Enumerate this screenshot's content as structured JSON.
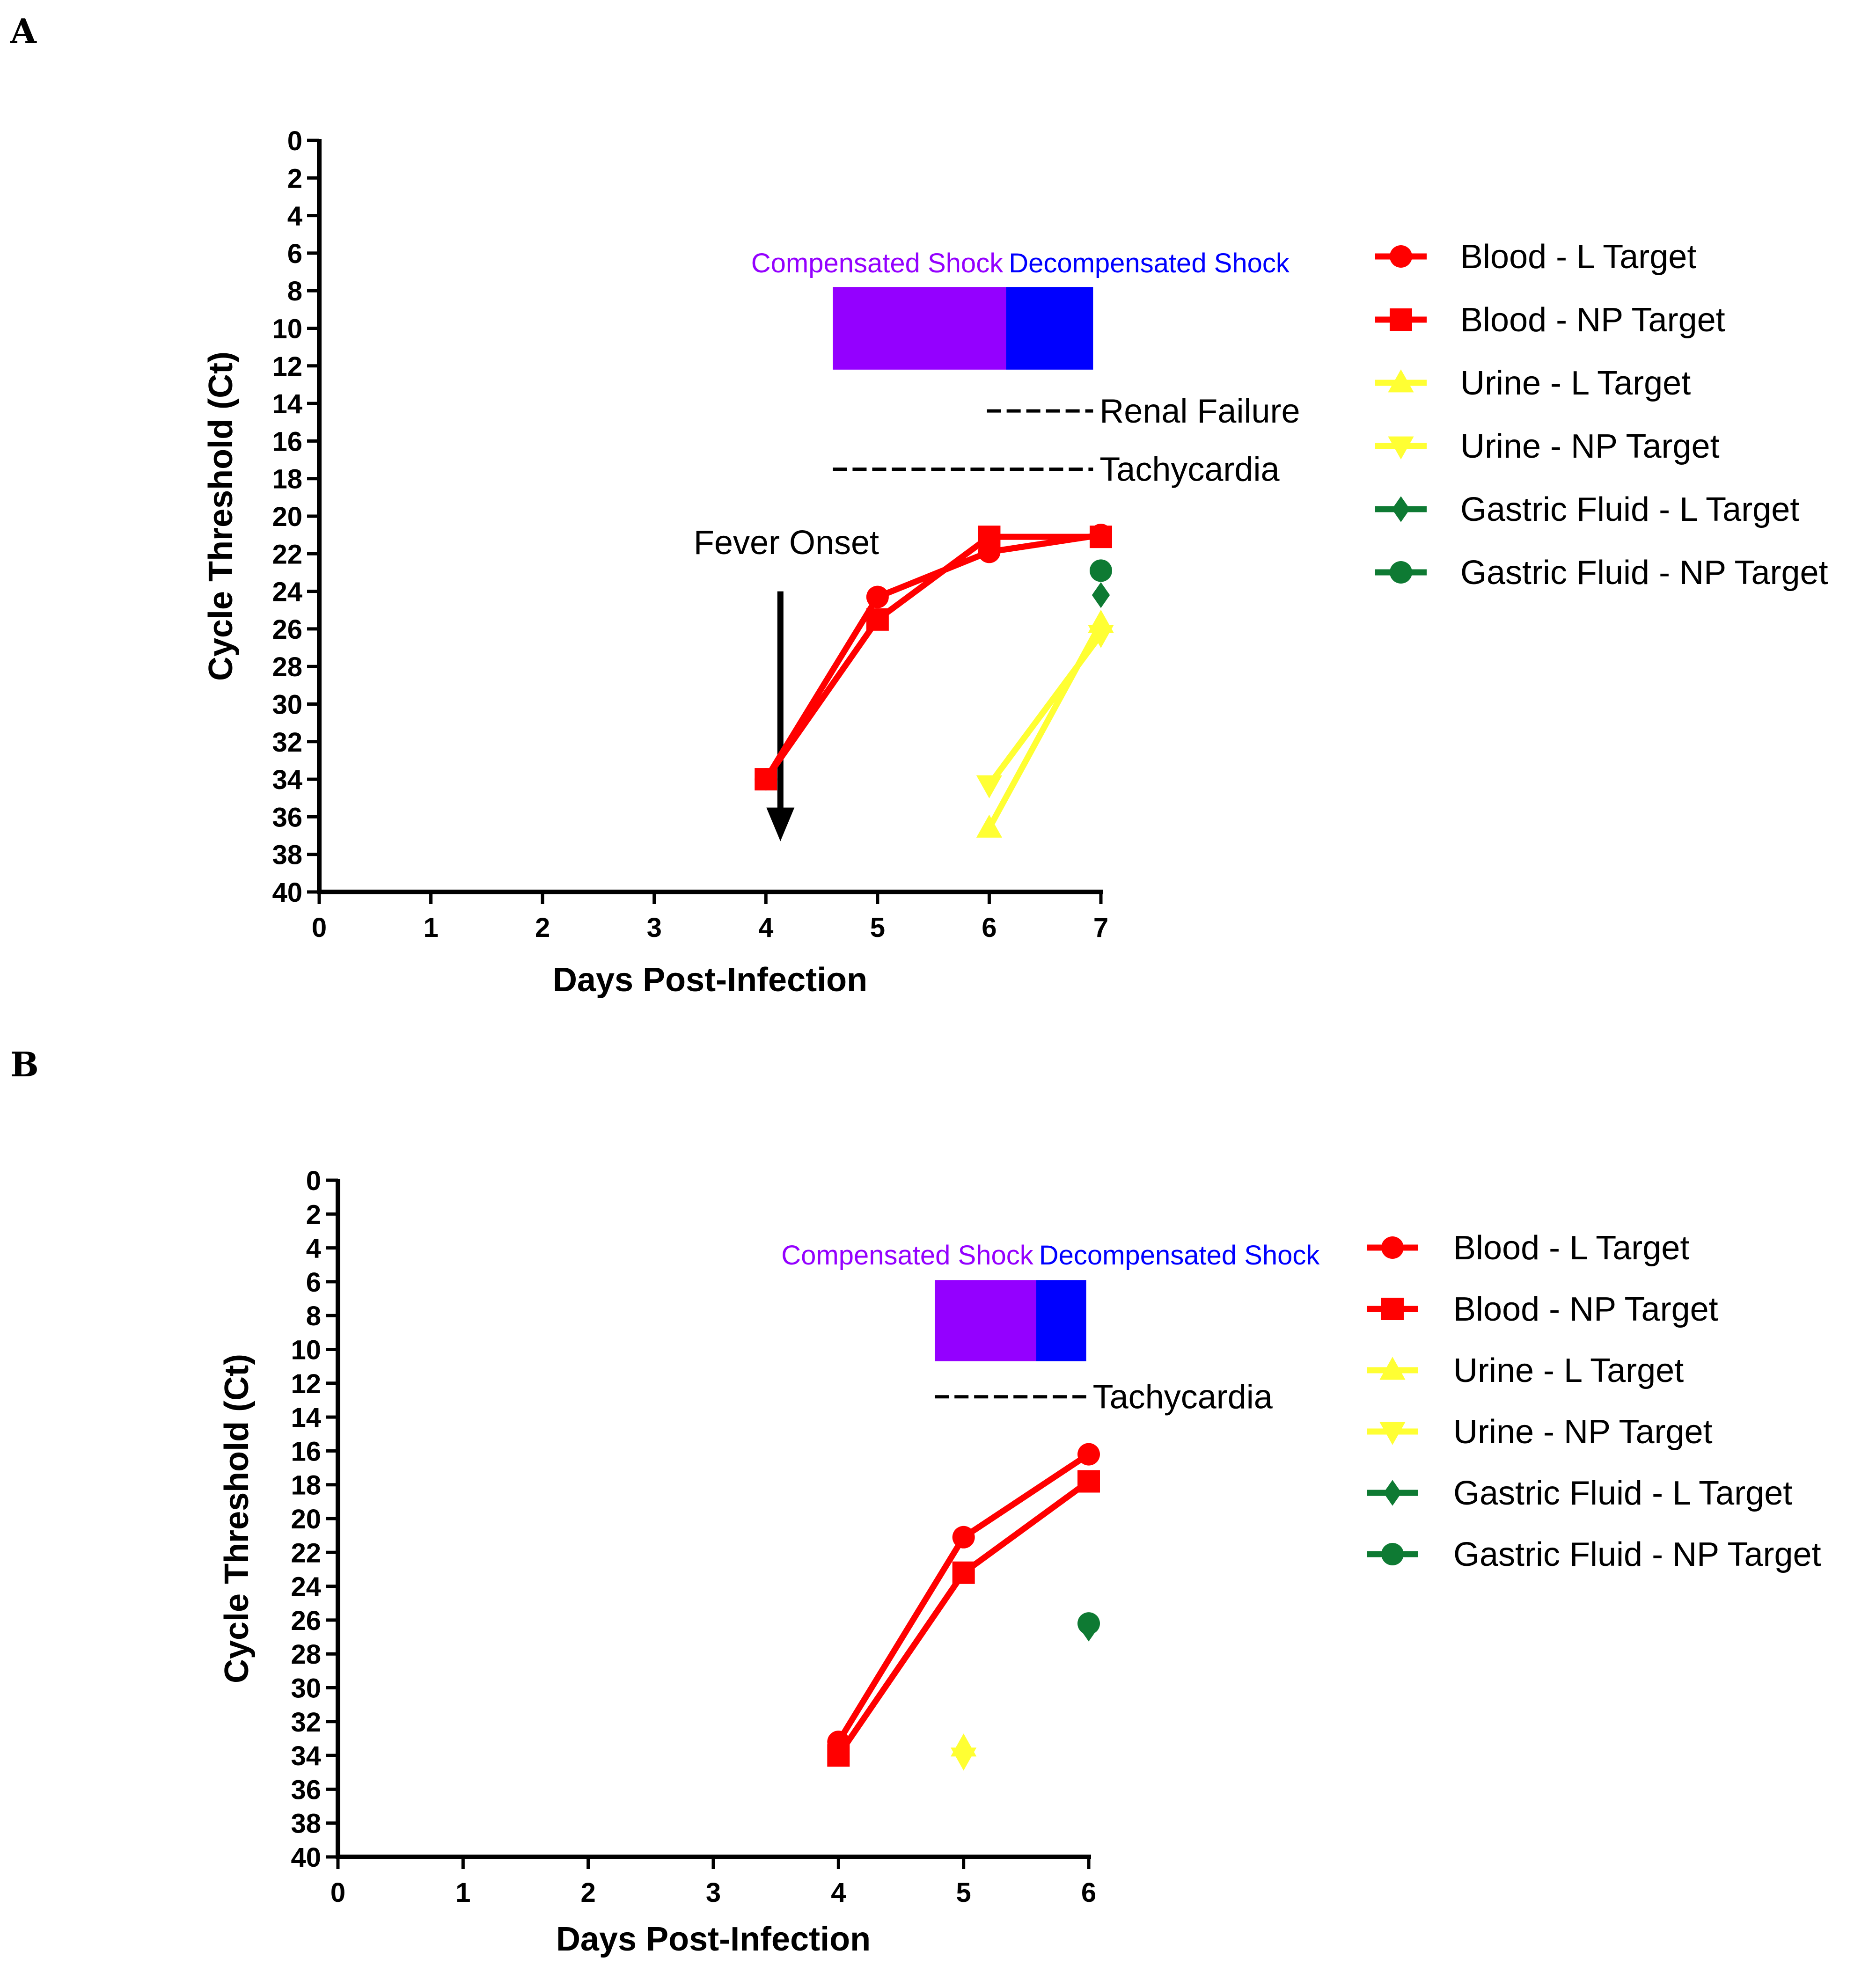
{
  "chart_data": [
    {
      "panel": "A",
      "type": "line",
      "xlabel": "Days Post-Infection",
      "ylabel": "Cycle Threshold (Ct)",
      "xlim": [
        0,
        7
      ],
      "ylim": [
        0,
        40
      ],
      "y_inverted": true,
      "x_ticks": [
        0,
        1,
        2,
        3,
        4,
        5,
        6,
        7
      ],
      "y_ticks": [
        0,
        2,
        4,
        6,
        8,
        10,
        12,
        14,
        16,
        18,
        20,
        22,
        24,
        26,
        28,
        30,
        32,
        34,
        36,
        38,
        40
      ],
      "grid": false,
      "legend_position": "right",
      "series": [
        {
          "name": "Blood - L Target",
          "color": "#ff0000",
          "marker": "circle",
          "points": [
            [
              4,
              34
            ],
            [
              5,
              24.3
            ],
            [
              6,
              21.9
            ],
            [
              7,
              21
            ]
          ]
        },
        {
          "name": "Blood - NP Target",
          "color": "#ff0000",
          "marker": "square",
          "points": [
            [
              4,
              34
            ],
            [
              5,
              25.5
            ],
            [
              6,
              21.1
            ],
            [
              7,
              21.1
            ]
          ]
        },
        {
          "name": "Urine - L Target",
          "color": "#ffff33",
          "marker": "triangle-up",
          "points": [
            [
              6,
              36.6
            ],
            [
              7,
              25.7
            ]
          ]
        },
        {
          "name": "Urine - NP Target",
          "color": "#ffff33",
          "marker": "triangle-down",
          "points": [
            [
              6,
              34.3
            ],
            [
              7,
              26.3
            ]
          ]
        },
        {
          "name": "Gastric Fluid - L Target",
          "color": "#0e7a33",
          "marker": "diamond",
          "points": [
            [
              7,
              24.2
            ]
          ]
        },
        {
          "name": "Gastric Fluid - NP Target",
          "color": "#0e7a33",
          "marker": "circle",
          "points": [
            [
              7,
              22.9
            ]
          ]
        }
      ],
      "phases": [
        {
          "label": "Compensated Shock",
          "color": "#9400ff",
          "x_start": 4.6,
          "x_end": 6.15,
          "y_top": 7.8,
          "y_bottom": 12.2
        },
        {
          "label": "Decompensated Shock",
          "color": "#0000ff",
          "x_start": 6.15,
          "x_end": 6.93,
          "y_top": 7.8,
          "y_bottom": 12.2
        }
      ],
      "annotations": [
        {
          "label": "Renal Failure",
          "x_start": 5.98,
          "x_end": 6.93,
          "y": 14.4
        },
        {
          "label": "Tachycardia",
          "x_start": 4.6,
          "x_end": 6.93,
          "y": 17.5
        }
      ],
      "arrow": {
        "label": "Fever Onset",
        "x": 4.13,
        "y_start": 24,
        "y_end": 37.3
      }
    },
    {
      "panel": "B",
      "type": "line",
      "xlabel": "Days Post-Infection",
      "ylabel": "Cycle Threshold (Ct)",
      "xlim": [
        0,
        6
      ],
      "ylim": [
        0,
        40
      ],
      "y_inverted": true,
      "x_ticks": [
        0,
        1,
        2,
        3,
        4,
        5,
        6
      ],
      "y_ticks": [
        0,
        2,
        4,
        6,
        8,
        10,
        12,
        14,
        16,
        18,
        20,
        22,
        24,
        26,
        28,
        30,
        32,
        34,
        36,
        38,
        40
      ],
      "grid": false,
      "legend_position": "right",
      "series": [
        {
          "name": "Blood - L Target",
          "color": "#ff0000",
          "marker": "circle",
          "points": [
            [
              4,
              33.2
            ],
            [
              5,
              21.1
            ],
            [
              6,
              16.2
            ]
          ]
        },
        {
          "name": "Blood - NP Target",
          "color": "#ff0000",
          "marker": "square",
          "points": [
            [
              4,
              34
            ],
            [
              5,
              23.2
            ],
            [
              6,
              17.8
            ]
          ]
        },
        {
          "name": "Urine - L Target",
          "color": "#ffff33",
          "marker": "triangle-up",
          "points": [
            [
              5,
              33.5
            ]
          ]
        },
        {
          "name": "Urine - NP Target",
          "color": "#ffff33",
          "marker": "triangle-down",
          "points": [
            [
              5,
              34.1
            ]
          ]
        },
        {
          "name": "Gastric Fluid - L Target",
          "color": "#0e7a33",
          "marker": "diamond",
          "points": [
            [
              6,
              26.5
            ]
          ]
        },
        {
          "name": "Gastric Fluid - NP Target",
          "color": "#0e7a33",
          "marker": "circle",
          "points": [
            [
              6,
              26.2
            ]
          ]
        }
      ],
      "phases": [
        {
          "label": "Compensated Shock",
          "color": "#9400ff",
          "x_start": 4.77,
          "x_end": 5.58,
          "y_top": 5.9,
          "y_bottom": 10.7
        },
        {
          "label": "Decompensated Shock",
          "color": "#0000ff",
          "x_start": 5.58,
          "x_end": 5.98,
          "y_top": 5.9,
          "y_bottom": 10.7
        }
      ],
      "annotations": [
        {
          "label": "Tachycardia",
          "x_start": 4.77,
          "x_end": 5.98,
          "y": 12.8
        }
      ]
    }
  ]
}
